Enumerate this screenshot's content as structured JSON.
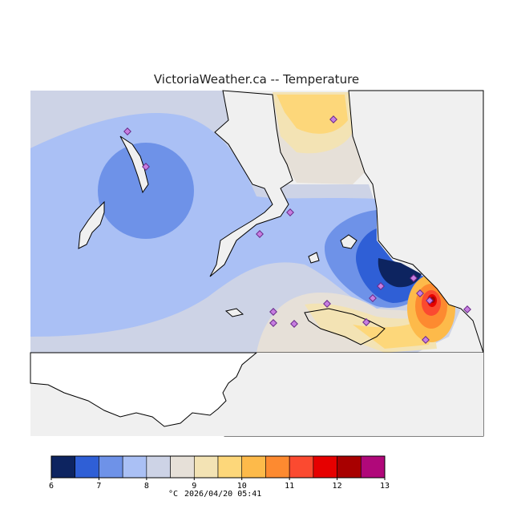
{
  "title": "VictoriaWeather.ca -- Temperature",
  "legend": {
    "unit": "°C",
    "timestamp": "2026/04/20 05:41",
    "ticks": [
      "6",
      "7",
      "8",
      "9",
      "10",
      "11",
      "12",
      "13"
    ],
    "bins": [
      {
        "from": 6.0,
        "to": 6.5,
        "color": "#0d2460"
      },
      {
        "from": 6.5,
        "to": 7.0,
        "color": "#2f5fd6"
      },
      {
        "from": 7.0,
        "to": 7.5,
        "color": "#6e92e8"
      },
      {
        "from": 7.5,
        "to": 8.0,
        "color": "#aac0f5"
      },
      {
        "from": 8.0,
        "to": 8.5,
        "color": "#cdd3e6"
      },
      {
        "from": 8.5,
        "to": 9.0,
        "color": "#e6e0d8"
      },
      {
        "from": 9.0,
        "to": 9.5,
        "color": "#f3e3b4"
      },
      {
        "from": 9.5,
        "to": 10.0,
        "color": "#fdd77a"
      },
      {
        "from": 10.0,
        "to": 10.5,
        "color": "#fdba4a"
      },
      {
        "from": 10.5,
        "to": 11.0,
        "color": "#fd8a30"
      },
      {
        "from": 11.0,
        "to": 11.5,
        "color": "#fb4a30"
      },
      {
        "from": 11.5,
        "to": 12.0,
        "color": "#e60000"
      },
      {
        "from": 12.0,
        "to": 12.5,
        "color": "#a80000"
      },
      {
        "from": 12.5,
        "to": 13.0,
        "color": "#b0087a"
      }
    ]
  },
  "colors": {
    "map_background": "#f0f0f0",
    "land_outline": "#000000",
    "station_fill": "#c77ee0",
    "station_stroke": "#6a2a8a"
  }
}
